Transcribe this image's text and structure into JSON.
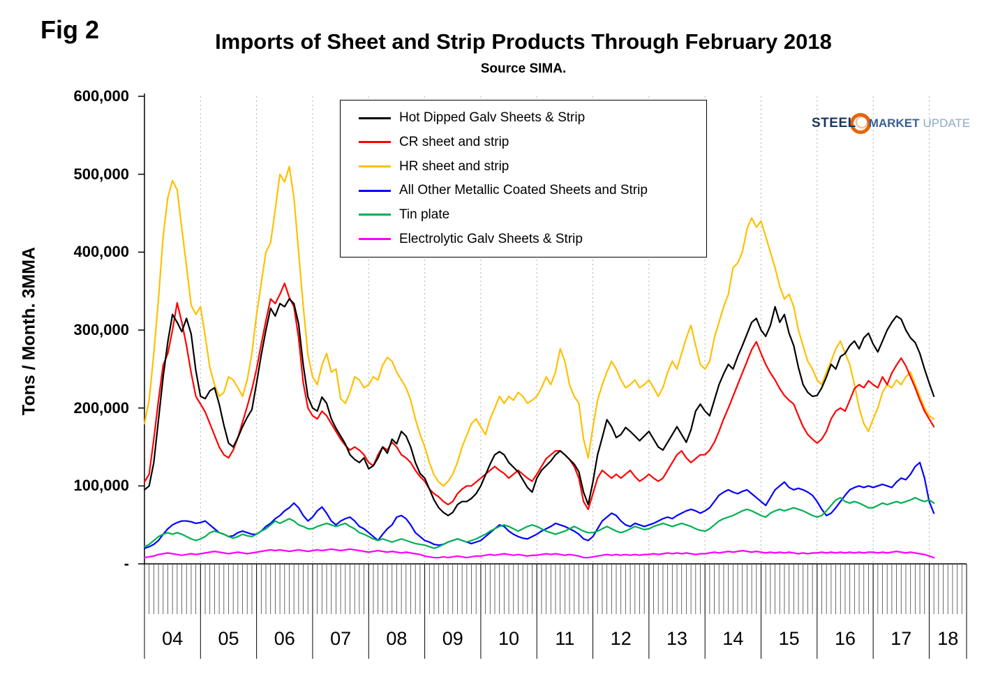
{
  "fig_label": "Fig 2",
  "title": "Imports of Sheet and Strip Products Through February 2018",
  "subtitle": "Source SIMA.",
  "logo": {
    "steel": "STEEL",
    "market": "MARKET",
    "update": "UPDATE"
  },
  "y_axis": {
    "title": "Tons / Month. 3MMA",
    "tick_labels": [
      "600,000",
      "500,000",
      "400,000",
      "300,000",
      "200,000",
      "100,000",
      "-"
    ]
  },
  "x_axis": {
    "year_labels": [
      "04",
      "05",
      "06",
      "07",
      "08",
      "09",
      "10",
      "11",
      "12",
      "13",
      "14",
      "15",
      "16",
      "17",
      "18"
    ]
  },
  "chart_data": {
    "type": "line",
    "title": "Imports of Sheet and Strip Products Through February 2018",
    "subtitle": "Source SIMA.",
    "ylabel": "Tons / Month. 3MMA",
    "ylim": [
      0,
      600000
    ],
    "unit": "tons per month, 3-month moving average",
    "values_scale": 1000,
    "x_start": "2004-01",
    "x_end": "2018-02",
    "x_frequency": "monthly",
    "grid": "vertical dashed lines at year boundaries",
    "legend_position": "inside top-left",
    "series": [
      {
        "name": "Hot Dipped Galv Sheets & Strip",
        "color": "#000000",
        "values": [
          95,
          100,
          130,
          185,
          240,
          285,
          320,
          310,
          298,
          315,
          295,
          248,
          215,
          212,
          222,
          226,
          205,
          178,
          155,
          150,
          162,
          176,
          188,
          198,
          232,
          268,
          300,
          328,
          318,
          334,
          330,
          340,
          334,
          308,
          255,
          214,
          200,
          196,
          214,
          206,
          186,
          174,
          164,
          154,
          140,
          134,
          130,
          136,
          122,
          126,
          136,
          150,
          142,
          160,
          154,
          170,
          164,
          150,
          130,
          116,
          110,
          96,
          82,
          72,
          66,
          62,
          66,
          76,
          80,
          80,
          84,
          90,
          100,
          114,
          128,
          140,
          144,
          140,
          130,
          124,
          118,
          108,
          98,
          92,
          110,
          120,
          126,
          132,
          140,
          145,
          140,
          134,
          128,
          118,
          92,
          76,
          105,
          140,
          162,
          185,
          176,
          162,
          166,
          175,
          170,
          164,
          158,
          164,
          170,
          160,
          150,
          146,
          156,
          166,
          176,
          166,
          156,
          172,
          196,
          205,
          196,
          190,
          210,
          230,
          244,
          256,
          250,
          266,
          280,
          295,
          310,
          315,
          300,
          292,
          306,
          330,
          310,
          320,
          296,
          280,
          252,
          230,
          220,
          215,
          216,
          226,
          240,
          256,
          250,
          266,
          270,
          280,
          286,
          276,
          290,
          296,
          282,
          272,
          286,
          300,
          310,
          318,
          314,
          300,
          290,
          284,
          270,
          250,
          232,
          215
        ]
      },
      {
        "name": "CR sheet and strip",
        "color": "#FF0000",
        "values": [
          105,
          115,
          160,
          210,
          255,
          270,
          300,
          335,
          310,
          280,
          245,
          215,
          205,
          195,
          180,
          165,
          150,
          140,
          136,
          146,
          162,
          182,
          202,
          224,
          250,
          282,
          312,
          340,
          334,
          346,
          360,
          342,
          330,
          290,
          232,
          200,
          190,
          186,
          196,
          190,
          180,
          170,
          160,
          152,
          146,
          150,
          146,
          140,
          130,
          126,
          140,
          150,
          146,
          156,
          150,
          140,
          136,
          130,
          120,
          112,
          106,
          96,
          90,
          86,
          80,
          76,
          80,
          90,
          96,
          100,
          100,
          105,
          110,
          115,
          120,
          125,
          120,
          116,
          110,
          115,
          120,
          115,
          110,
          106,
          115,
          125,
          135,
          140,
          145,
          145,
          140,
          134,
          125,
          110,
          80,
          70,
          90,
          110,
          120,
          115,
          110,
          115,
          110,
          115,
          120,
          112,
          106,
          110,
          115,
          110,
          106,
          110,
          120,
          130,
          140,
          145,
          136,
          130,
          135,
          140,
          140,
          146,
          156,
          170,
          186,
          200,
          215,
          230,
          245,
          260,
          275,
          285,
          270,
          256,
          245,
          236,
          225,
          216,
          210,
          205,
          190,
          176,
          166,
          160,
          155,
          160,
          170,
          186,
          196,
          200,
          196,
          210,
          225,
          230,
          226,
          235,
          230,
          226,
          240,
          230,
          245,
          255,
          264,
          254,
          240,
          226,
          210,
          196,
          186,
          176
        ]
      },
      {
        "name": "HR sheet and strip",
        "color": "#FFC000",
        "values": [
          180,
          210,
          270,
          340,
          420,
          470,
          492,
          480,
          430,
          382,
          332,
          320,
          330,
          292,
          252,
          230,
          215,
          220,
          240,
          236,
          226,
          215,
          236,
          270,
          320,
          360,
          400,
          412,
          455,
          500,
          490,
          510,
          470,
          400,
          330,
          268,
          240,
          230,
          255,
          270,
          246,
          250,
          212,
          206,
          220,
          240,
          236,
          226,
          230,
          240,
          236,
          255,
          265,
          260,
          246,
          236,
          226,
          210,
          186,
          166,
          150,
          130,
          114,
          105,
          100,
          106,
          115,
          130,
          150,
          165,
          180,
          186,
          176,
          166,
          186,
          200,
          215,
          206,
          215,
          210,
          220,
          215,
          206,
          210,
          215,
          226,
          240,
          230,
          246,
          276,
          260,
          230,
          215,
          206,
          160,
          136,
          175,
          210,
          230,
          246,
          260,
          250,
          236,
          226,
          230,
          236,
          226,
          230,
          236,
          226,
          215,
          226,
          246,
          260,
          250,
          270,
          290,
          306,
          280,
          256,
          250,
          260,
          290,
          310,
          330,
          346,
          380,
          386,
          400,
          430,
          444,
          432,
          440,
          420,
          400,
          380,
          356,
          340,
          346,
          330,
          300,
          280,
          260,
          250,
          236,
          230,
          246,
          260,
          276,
          286,
          270,
          256,
          230,
          200,
          180,
          170,
          186,
          200,
          220,
          230,
          226,
          236,
          230,
          240,
          246,
          230,
          215,
          200,
          190,
          186
        ]
      },
      {
        "name": "All Other Metallic Coated Sheets and Strip",
        "color": "#0000FF",
        "values": [
          20,
          22,
          25,
          30,
          38,
          45,
          50,
          53,
          55,
          55,
          54,
          52,
          53,
          55,
          50,
          45,
          40,
          38,
          35,
          36,
          40,
          42,
          40,
          38,
          38,
          42,
          48,
          52,
          58,
          62,
          68,
          72,
          78,
          72,
          62,
          55,
          60,
          68,
          73,
          65,
          55,
          50,
          55,
          58,
          60,
          55,
          48,
          45,
          40,
          35,
          30,
          38,
          45,
          50,
          60,
          62,
          58,
          50,
          40,
          35,
          30,
          28,
          25,
          24,
          25,
          28,
          30,
          32,
          30,
          28,
          26,
          28,
          30,
          35,
          40,
          45,
          50,
          48,
          42,
          38,
          35,
          33,
          32,
          35,
          38,
          42,
          45,
          48,
          52,
          50,
          48,
          45,
          42,
          38,
          32,
          30,
          35,
          45,
          55,
          60,
          65,
          62,
          55,
          50,
          48,
          52,
          50,
          48,
          50,
          52,
          55,
          58,
          60,
          58,
          62,
          65,
          68,
          70,
          68,
          65,
          68,
          72,
          80,
          88,
          92,
          95,
          92,
          90,
          93,
          95,
          90,
          85,
          80,
          75,
          85,
          95,
          100,
          105,
          98,
          95,
          97,
          95,
          92,
          88,
          80,
          70,
          62,
          65,
          72,
          80,
          88,
          95,
          98,
          100,
          98,
          100,
          98,
          100,
          102,
          100,
          98,
          105,
          110,
          108,
          115,
          125,
          130,
          110,
          80,
          65
        ]
      },
      {
        "name": "Tin plate",
        "color": "#00B050",
        "values": [
          22,
          25,
          30,
          35,
          38,
          40,
          38,
          40,
          38,
          35,
          32,
          30,
          32,
          35,
          40,
          42,
          40,
          38,
          35,
          33,
          35,
          38,
          36,
          35,
          38,
          42,
          45,
          50,
          55,
          52,
          55,
          58,
          55,
          50,
          48,
          45,
          45,
          48,
          50,
          52,
          50,
          48,
          50,
          52,
          48,
          45,
          40,
          38,
          35,
          32,
          30,
          32,
          30,
          28,
          30,
          32,
          30,
          28,
          26,
          25,
          24,
          22,
          20,
          22,
          25,
          28,
          30,
          32,
          30,
          28,
          30,
          32,
          35,
          38,
          42,
          45,
          48,
          50,
          48,
          45,
          42,
          45,
          48,
          50,
          48,
          45,
          42,
          40,
          38,
          40,
          42,
          45,
          48,
          45,
          42,
          40,
          40,
          42,
          45,
          48,
          45,
          42,
          40,
          42,
          45,
          48,
          46,
          44,
          45,
          48,
          50,
          52,
          50,
          48,
          50,
          52,
          50,
          48,
          45,
          43,
          42,
          45,
          50,
          55,
          58,
          60,
          62,
          65,
          68,
          70,
          68,
          65,
          62,
          60,
          65,
          68,
          70,
          68,
          70,
          72,
          70,
          68,
          65,
          62,
          60,
          62,
          68,
          75,
          82,
          85,
          80,
          78,
          80,
          78,
          75,
          72,
          72,
          75,
          78,
          76,
          78,
          80,
          78,
          80,
          82,
          85,
          82,
          80,
          82,
          78
        ]
      },
      {
        "name": "Electrolytic Galv Sheets & Strip",
        "color": "#FF00FF",
        "values": [
          8,
          9,
          10,
          12,
          13,
          14,
          13,
          12,
          11,
          12,
          13,
          12,
          13,
          14,
          15,
          16,
          15,
          14,
          13,
          14,
          15,
          14,
          13,
          14,
          15,
          16,
          17,
          18,
          17,
          18,
          17,
          16,
          17,
          18,
          17,
          16,
          17,
          18,
          17,
          18,
          19,
          18,
          17,
          18,
          19,
          18,
          17,
          16,
          15,
          16,
          17,
          16,
          15,
          16,
          15,
          14,
          15,
          14,
          13,
          12,
          10,
          9,
          8,
          8,
          9,
          8,
          9,
          10,
          9,
          8,
          9,
          10,
          10,
          11,
          12,
          11,
          12,
          13,
          12,
          11,
          12,
          11,
          10,
          11,
          11,
          12,
          13,
          12,
          13,
          12,
          11,
          12,
          11,
          10,
          8,
          8,
          9,
          10,
          11,
          12,
          11,
          12,
          11,
          12,
          11,
          12,
          11,
          12,
          12,
          13,
          12,
          13,
          14,
          13,
          14,
          13,
          14,
          13,
          12,
          13,
          13,
          14,
          15,
          14,
          15,
          16,
          15,
          16,
          17,
          16,
          15,
          16,
          15,
          14,
          15,
          14,
          15,
          14,
          15,
          14,
          13,
          14,
          13,
          14,
          14,
          15,
          14,
          15,
          14,
          15,
          14,
          15,
          14,
          15,
          14,
          15,
          15,
          14,
          15,
          14,
          15,
          16,
          15,
          14,
          15,
          14,
          13,
          12,
          10,
          8
        ]
      }
    ]
  }
}
